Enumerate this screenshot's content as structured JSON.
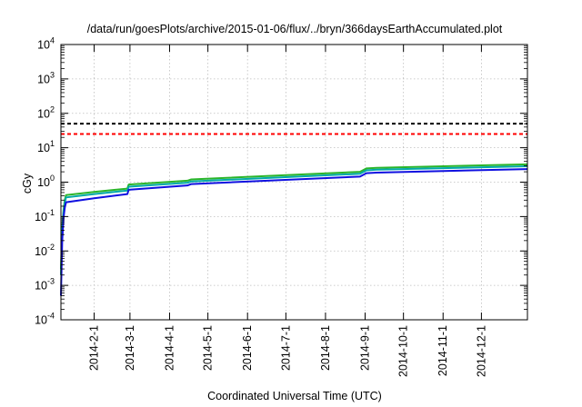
{
  "chart_data": {
    "type": "line",
    "title": "/data/run/goesPlots/archive/2015-01-06/flux/../bryn/366daysEarthAccumulated.plot",
    "xlabel": "Coordinated Universal Time (UTC)",
    "ylabel": "cGy",
    "y_scale": "log",
    "ylim": [
      0.0001,
      10000
    ],
    "xlim": [
      "2014-01-06",
      "2015-01-06"
    ],
    "grid": true,
    "y_ticks": [
      {
        "base": "10",
        "exp": "-4",
        "value": 0.0001
      },
      {
        "base": "10",
        "exp": "-3",
        "value": 0.001
      },
      {
        "base": "10",
        "exp": "-2",
        "value": 0.01
      },
      {
        "base": "10",
        "exp": "-1",
        "value": 0.1
      },
      {
        "base": "10",
        "exp": "0",
        "value": 1
      },
      {
        "base": "10",
        "exp": "1",
        "value": 10
      },
      {
        "base": "10",
        "exp": "2",
        "value": 100
      },
      {
        "base": "10",
        "exp": "3",
        "value": 1000
      },
      {
        "base": "10",
        "exp": "4",
        "value": 10000
      }
    ],
    "x_ticks": [
      "2014-2-1",
      "2014-3-1",
      "2014-4-1",
      "2014-5-1",
      "2014-6-1",
      "2014-7-1",
      "2014-8-1",
      "2014-9-1",
      "2014-10-1",
      "2014-11-1",
      "2014-12-1"
    ],
    "x_tick_dates": [
      "2014-02-01",
      "2014-03-01",
      "2014-04-01",
      "2014-05-01",
      "2014-06-01",
      "2014-07-01",
      "2014-08-01",
      "2014-09-01",
      "2014-10-01",
      "2014-11-01",
      "2014-12-01"
    ],
    "reference_lines": [
      {
        "value": 50,
        "color": "#000000",
        "style": "dashed"
      },
      {
        "value": 25,
        "color": "#ff0000",
        "style": "dashed"
      }
    ],
    "series": [
      {
        "color": "#2ab52a",
        "x": [
          "2014-01-06",
          "2014-01-07",
          "2014-01-08",
          "2014-01-09",
          "2014-01-10",
          "2014-02-01",
          "2014-02-27",
          "2014-02-28",
          "2014-04-15",
          "2014-04-18",
          "2014-08-28",
          "2014-09-02",
          "2014-09-10",
          "2015-01-06"
        ],
        "y": [
          0.003,
          0.05,
          0.15,
          0.3,
          0.42,
          0.52,
          0.65,
          0.85,
          1.1,
          1.2,
          2.0,
          2.5,
          2.6,
          3.3
        ]
      },
      {
        "color": "#00a8a8",
        "x": [
          "2014-01-06",
          "2014-01-07",
          "2014-01-08",
          "2014-01-09",
          "2014-01-10",
          "2014-02-01",
          "2014-02-27",
          "2014-02-28",
          "2014-04-15",
          "2014-04-18",
          "2014-08-28",
          "2014-09-02",
          "2014-09-10",
          "2015-01-06"
        ],
        "y": [
          0.002,
          0.04,
          0.12,
          0.25,
          0.36,
          0.45,
          0.57,
          0.74,
          0.96,
          1.05,
          1.75,
          2.2,
          2.3,
          2.9
        ]
      },
      {
        "color": "#1010e0",
        "x": [
          "2014-01-06",
          "2014-01-07",
          "2014-01-08",
          "2014-01-09",
          "2014-01-10",
          "2014-02-01",
          "2014-02-27",
          "2014-02-28",
          "2014-04-15",
          "2014-04-18",
          "2014-08-28",
          "2014-09-02",
          "2014-09-10",
          "2015-01-06"
        ],
        "y": [
          0.0005,
          0.02,
          0.09,
          0.18,
          0.26,
          0.34,
          0.45,
          0.6,
          0.8,
          0.88,
          1.45,
          1.82,
          1.9,
          2.4
        ]
      }
    ]
  }
}
